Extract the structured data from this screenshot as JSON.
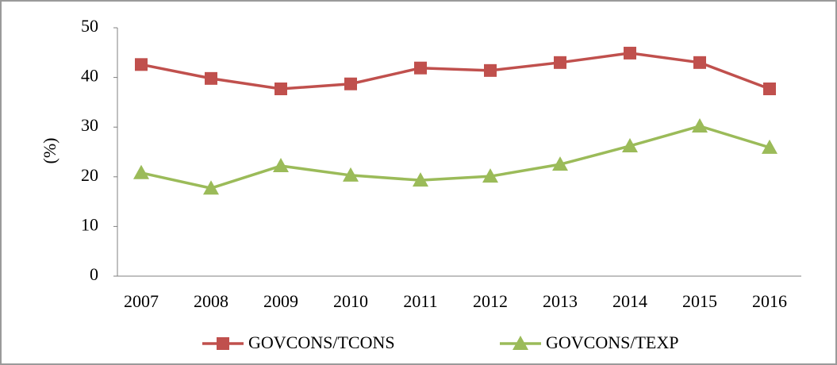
{
  "chart_data": {
    "type": "line",
    "y_label": "(%)",
    "categories": [
      "2007",
      "2008",
      "2009",
      "2010",
      "2011",
      "2012",
      "2013",
      "2014",
      "2015",
      "2016"
    ],
    "series": [
      {
        "name": "GOVCONS/TCONS",
        "color": "#c0504d",
        "marker": "square",
        "values": [
          42.6,
          39.8,
          37.7,
          38.7,
          41.9,
          41.4,
          43.0,
          44.9,
          43.0,
          37.7
        ]
      },
      {
        "name": "GOVCONS/TEXP",
        "color": "#9bbb59",
        "marker": "triangle",
        "values": [
          20.8,
          17.7,
          22.2,
          20.3,
          19.3,
          20.1,
          22.5,
          26.2,
          30.2,
          25.9
        ]
      }
    ],
    "ylim": [
      0,
      50
    ],
    "yticks": [
      0,
      10,
      20,
      30,
      40,
      50
    ],
    "grid": false,
    "legend": "bottom"
  }
}
